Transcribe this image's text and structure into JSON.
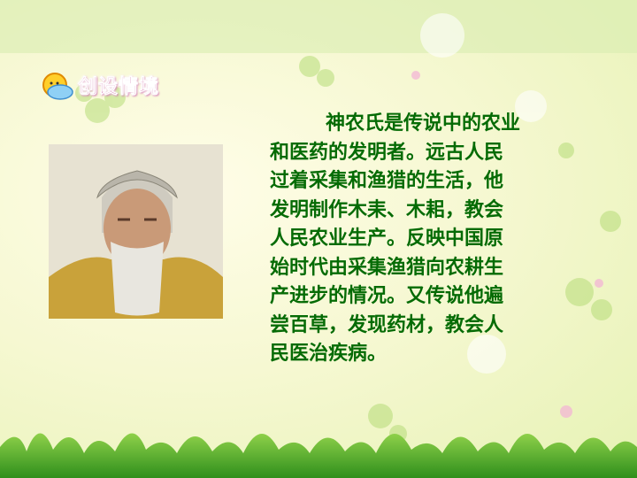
{
  "heading": "创设情境",
  "body": {
    "lines": [
      "神农氏是传说中的农业",
      "和医药的发明者。远古人民",
      "过着采集和渔猎的生活，他",
      "发明制作木耒、木耜，教会",
      "人民农业生产。反映中国原",
      "始时代由采集渔猎向农耕生",
      "产进步的情况。又传说他遍",
      "尝百草，发现药材，教会人",
      "民医治疾病。"
    ]
  }
}
